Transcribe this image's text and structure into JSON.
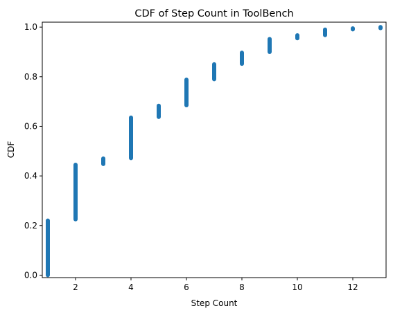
{
  "chart_data": {
    "type": "scatter",
    "title": "CDF of Step Count in ToolBench",
    "xlabel": "Step Count",
    "ylabel": "CDF",
    "xlim": [
      0.8,
      13.2
    ],
    "ylim": [
      -0.01,
      1.02
    ],
    "x_ticks": [
      2,
      4,
      6,
      8,
      10,
      12
    ],
    "y_ticks": [
      0.0,
      0.2,
      0.4,
      0.6,
      0.8,
      1.0
    ],
    "x_tick_labels": [
      "2",
      "4",
      "6",
      "8",
      "10",
      "12"
    ],
    "y_tick_labels": [
      "0.0",
      "0.2",
      "0.4",
      "0.6",
      "0.8",
      "1.0"
    ],
    "grid": false,
    "marker_color": "#1f77b4",
    "series": [
      {
        "segments": [
          {
            "x": 1,
            "y_min": 0.0,
            "y_max": 0.22
          },
          {
            "x": 2,
            "y_min": 0.225,
            "y_max": 0.445
          },
          {
            "x": 3,
            "y_min": 0.448,
            "y_max": 0.47
          },
          {
            "x": 4,
            "y_min": 0.472,
            "y_max": 0.635
          },
          {
            "x": 5,
            "y_min": 0.638,
            "y_max": 0.683
          },
          {
            "x": 6,
            "y_min": 0.685,
            "y_max": 0.788
          },
          {
            "x": 7,
            "y_min": 0.79,
            "y_max": 0.85
          },
          {
            "x": 8,
            "y_min": 0.852,
            "y_max": 0.897
          },
          {
            "x": 9,
            "y_min": 0.9,
            "y_max": 0.952
          },
          {
            "x": 10,
            "y_min": 0.955,
            "y_max": 0.967
          },
          {
            "x": 11,
            "y_min": 0.968,
            "y_max": 0.99
          },
          {
            "x": 12,
            "y_min": 0.991,
            "y_max": 0.995
          },
          {
            "x": 13,
            "y_min": 0.996,
            "y_max": 1.0
          }
        ]
      }
    ]
  }
}
